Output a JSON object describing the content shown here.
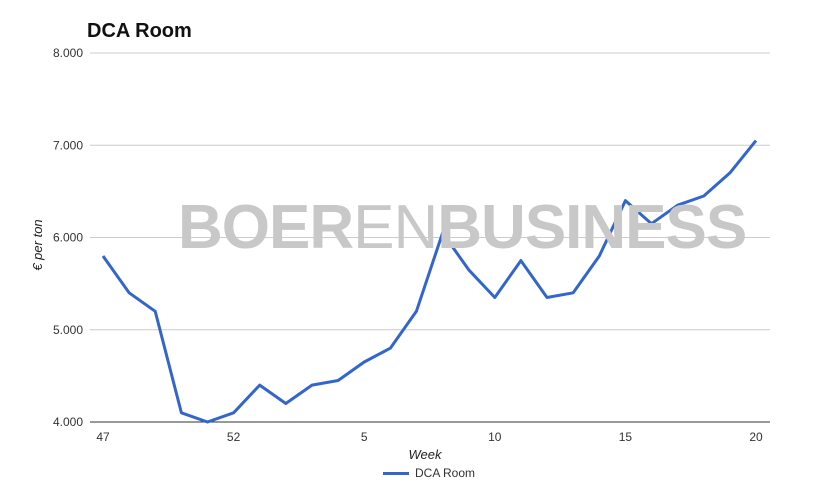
{
  "chart_data": {
    "type": "line",
    "title": "DCA Room",
    "xlabel": "Week",
    "ylabel": "€ per ton",
    "ylim": [
      4,
      8
    ],
    "yticks": [
      "4.000",
      "5.000",
      "6.000",
      "7.000",
      "8.000"
    ],
    "xticks": [
      "47",
      "52",
      "5",
      "10",
      "15",
      "20"
    ],
    "grid": true,
    "legend": "bottom",
    "colors": {
      "series": "#3366cc",
      "grid": "#cccccc"
    },
    "x": [
      "47",
      "48",
      "49",
      "50",
      "51",
      "52",
      "1",
      "2",
      "3",
      "4",
      "5",
      "6",
      "7",
      "8",
      "9",
      "10",
      "11",
      "12",
      "13",
      "14",
      "15",
      "16",
      "17",
      "18",
      "19",
      "20"
    ],
    "series": [
      {
        "name": "DCA Room",
        "values": [
          5.8,
          5.4,
          5.2,
          4.1,
          4.0,
          4.1,
          4.4,
          4.2,
          4.4,
          4.45,
          4.65,
          4.8,
          5.2,
          6.05,
          5.65,
          5.35,
          5.75,
          5.35,
          5.4,
          5.8,
          6.4,
          6.15,
          6.35,
          6.45,
          6.7,
          7.05
        ]
      }
    ]
  },
  "watermark": {
    "bold1": "BOER",
    "thin": "EN",
    "bold2": "BUSINESS"
  }
}
